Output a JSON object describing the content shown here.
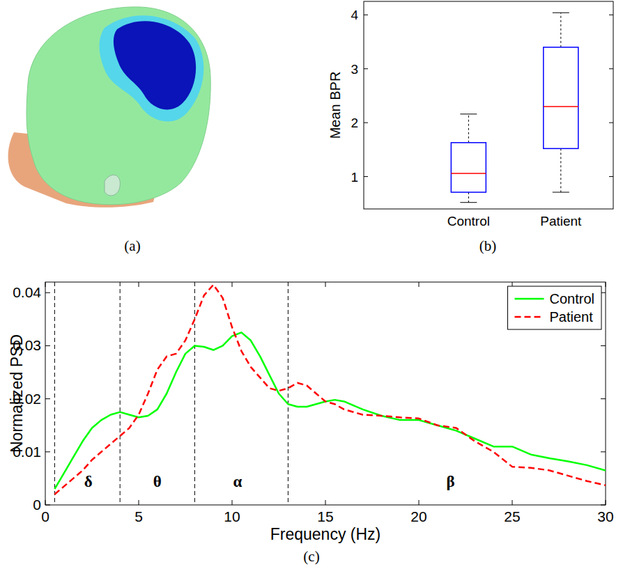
{
  "chart_data": [
    {
      "type": "image",
      "caption": "(a)"
    },
    {
      "type": "box",
      "caption": "(b)",
      "y_label": "Mean BPR",
      "categories": [
        "Control",
        "Patient"
      ],
      "boxes": [
        {
          "whisker_low": 0.52,
          "q1": 0.71,
          "median": 1.06,
          "q3": 1.63,
          "whisker_high": 2.16
        },
        {
          "whisker_low": 0.71,
          "q1": 1.52,
          "median": 2.3,
          "q3": 3.4,
          "whisker_high": 4.04
        }
      ],
      "color": "#0000ff",
      "ylim": [
        0.4,
        4.25
      ],
      "yticks": [
        1,
        2,
        3,
        4
      ],
      "grid": false
    },
    {
      "type": "line",
      "caption": "(c)",
      "x_label": "Frequency (Hz)",
      "y_label": "Normalized PSD",
      "x": [
        0.5,
        1,
        1.5,
        2,
        2.5,
        3,
        3.5,
        4,
        4.5,
        5,
        5.5,
        6,
        6.5,
        7,
        7.5,
        8,
        8.5,
        9,
        9.5,
        10,
        10.5,
        11,
        11.5,
        12,
        12.5,
        13,
        13.5,
        14,
        14.5,
        15,
        15.5,
        16,
        17,
        18,
        19,
        20,
        21,
        22,
        23,
        24,
        25,
        26,
        27,
        28,
        29,
        30
      ],
      "series": [
        {
          "name": "Control",
          "color": "#00ff00",
          "line_style": "solid",
          "values": [
            0.003,
            0.006,
            0.009,
            0.012,
            0.0145,
            0.016,
            0.017,
            0.0175,
            0.017,
            0.0165,
            0.0168,
            0.018,
            0.021,
            0.025,
            0.0285,
            0.03,
            0.0298,
            0.0292,
            0.03,
            0.0318,
            0.0325,
            0.031,
            0.028,
            0.0245,
            0.021,
            0.019,
            0.0185,
            0.0185,
            0.019,
            0.0195,
            0.0198,
            0.0195,
            0.018,
            0.0168,
            0.016,
            0.016,
            0.015,
            0.014,
            0.0125,
            0.011,
            0.011,
            0.0095,
            0.0088,
            0.0082,
            0.0075,
            0.0065
          ]
        },
        {
          "name": "Patient",
          "color": "#ff0000",
          "line_style": "dashed",
          "values": [
            0.002,
            0.0035,
            0.005,
            0.0065,
            0.0085,
            0.01,
            0.0115,
            0.013,
            0.0145,
            0.017,
            0.021,
            0.0255,
            0.028,
            0.0285,
            0.031,
            0.035,
            0.0395,
            0.0415,
            0.039,
            0.0335,
            0.029,
            0.026,
            0.024,
            0.022,
            0.0215,
            0.022,
            0.023,
            0.0225,
            0.021,
            0.0195,
            0.019,
            0.018,
            0.017,
            0.0168,
            0.0165,
            0.0163,
            0.015,
            0.0145,
            0.012,
            0.01,
            0.0072,
            0.007,
            0.0065,
            0.0055,
            0.0045,
            0.0037
          ]
        }
      ],
      "vlines": [
        0.5,
        4,
        8,
        13
      ],
      "annotations": [
        {
          "text": "δ",
          "x": 2.3,
          "y": 0.0045
        },
        {
          "text": "θ",
          "x": 6,
          "y": 0.0045
        },
        {
          "text": "α",
          "x": 10.3,
          "y": 0.0045
        },
        {
          "text": "β",
          "x": 21.7,
          "y": 0.0045
        }
      ],
      "xlim": [
        0,
        30
      ],
      "xticks": [
        0,
        5,
        10,
        15,
        20,
        25,
        30
      ],
      "ylim": [
        0,
        0.042
      ],
      "yticks": [
        0,
        0.01,
        0.02,
        0.03,
        0.04
      ],
      "legend": "northeast",
      "grid": false
    }
  ]
}
